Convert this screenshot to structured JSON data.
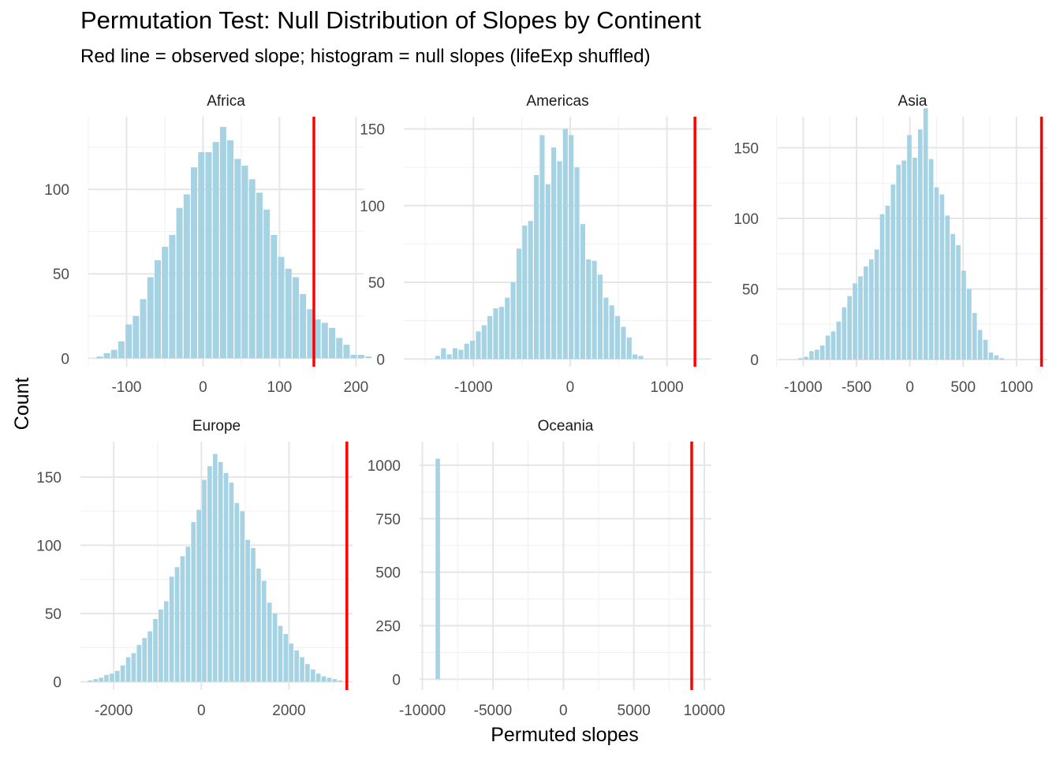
{
  "title": "Permutation Test: Null Distribution of Slopes by Continent",
  "subtitle": "Red line = observed slope; histogram = null slopes (lifeExp shuffled)",
  "colors": {
    "bar": "#a6d3e3",
    "observed_line": "#ff0000",
    "grid_major": "#e6e6e6",
    "grid_minor": "#f2f2f2",
    "text": "#4d4d4d"
  },
  "chart_data": {
    "type": "bar",
    "xlabel": "Permuted slopes",
    "ylabel": "Count",
    "grid": true,
    "facets": [
      {
        "name": "Africa",
        "xlim": [
          -150,
          210
        ],
        "ylim": [
          -5,
          143
        ],
        "xticks": [
          {
            "v": -100,
            "label": "-100"
          },
          {
            "v": 0,
            "label": "0"
          },
          {
            "v": 100,
            "label": "100"
          },
          {
            "v": 200,
            "label": "200"
          }
        ],
        "xminor": [
          -150,
          -50,
          50,
          150
        ],
        "yticks": [
          {
            "v": 0,
            "label": "0"
          },
          {
            "v": 50,
            "label": "50"
          },
          {
            "v": 100,
            "label": "100"
          }
        ],
        "yminor": [
          25,
          75,
          125
        ],
        "bins": {
          "start": -140,
          "width": 9.5,
          "counts": [
            1,
            3,
            5,
            10,
            20,
            25,
            35,
            48,
            58,
            66,
            73,
            89,
            97,
            113,
            122,
            122,
            128,
            137,
            129,
            118,
            114,
            106,
            98,
            88,
            73,
            60,
            53,
            48,
            38,
            29,
            23,
            21,
            18,
            12,
            8,
            2,
            2,
            1
          ]
        },
        "observed": 145
      },
      {
        "name": "Americas",
        "xlim": [
          -1720,
          1460
        ],
        "ylim": [
          -5,
          158
        ],
        "xticks": [
          {
            "v": -1000,
            "label": "-1000"
          },
          {
            "v": 0,
            "label": "0"
          },
          {
            "v": 1000,
            "label": "1000"
          }
        ],
        "xminor": [
          -1500,
          -500,
          500
        ],
        "yticks": [
          {
            "v": 0,
            "label": "0"
          },
          {
            "v": 50,
            "label": "50"
          },
          {
            "v": 100,
            "label": "100"
          },
          {
            "v": 150,
            "label": "150"
          }
        ],
        "yminor": [
          25,
          75,
          125
        ],
        "bins": {
          "start": -1400,
          "width": 60,
          "counts": [
            2,
            7,
            3,
            7,
            6,
            10,
            12,
            18,
            22,
            28,
            33,
            34,
            40,
            50,
            72,
            87,
            90,
            120,
            146,
            114,
            138,
            129,
            150,
            146,
            125,
            88,
            65,
            64,
            55,
            40,
            35,
            28,
            21,
            14,
            3,
            2
          ]
        },
        "observed": 1290
      },
      {
        "name": "Asia",
        "xlim": [
          -1240,
          1290
        ],
        "ylim": [
          -5,
          172
        ],
        "xticks": [
          {
            "v": -1000,
            "label": "-1000"
          },
          {
            "v": -500,
            "label": "-500"
          },
          {
            "v": 0,
            "label": "0"
          },
          {
            "v": 500,
            "label": "500"
          },
          {
            "v": 1000,
            "label": "1000"
          }
        ],
        "xminor": [
          -1250,
          -750,
          -250,
          250,
          750,
          1250
        ],
        "yticks": [
          {
            "v": 0,
            "label": "0"
          },
          {
            "v": 50,
            "label": "50"
          },
          {
            "v": 100,
            "label": "100"
          },
          {
            "v": 150,
            "label": "150"
          }
        ],
        "yminor": [
          25,
          75,
          125
        ],
        "bins": {
          "start": -1050,
          "width": 51,
          "counts": [
            1,
            2,
            6,
            7,
            10,
            17,
            20,
            27,
            37,
            45,
            54,
            59,
            66,
            71,
            78,
            103,
            109,
            124,
            138,
            141,
            159,
            143,
            163,
            178,
            142,
            122,
            117,
            102,
            89,
            81,
            63,
            50,
            33,
            21,
            14,
            5,
            3,
            1
          ]
        },
        "observed": 1235
      },
      {
        "name": "Europe",
        "xlim": [
          -2760,
          3450
        ],
        "ylim": [
          -6,
          176
        ],
        "xticks": [
          {
            "v": -2000,
            "label": "-2000"
          },
          {
            "v": 0,
            "label": "0"
          },
          {
            "v": 2000,
            "label": "2000"
          }
        ],
        "xminor": [
          -1000,
          1000,
          3000
        ],
        "yticks": [
          {
            "v": 0,
            "label": "0"
          },
          {
            "v": 50,
            "label": "50"
          },
          {
            "v": 100,
            "label": "100"
          },
          {
            "v": 150,
            "label": "150"
          }
        ],
        "yminor": [
          25,
          75,
          125
        ],
        "bins": {
          "start": -2600,
          "width": 124,
          "counts": [
            1,
            2,
            3,
            5,
            6,
            8,
            12,
            18,
            21,
            27,
            32,
            37,
            46,
            53,
            59,
            77,
            84,
            92,
            99,
            117,
            126,
            148,
            158,
            167,
            161,
            153,
            146,
            131,
            125,
            104,
            98,
            83,
            74,
            58,
            50,
            41,
            35,
            28,
            23,
            18,
            13,
            9,
            6,
            4,
            3,
            2,
            1
          ]
        },
        "observed": 3320
      },
      {
        "name": "Oceania",
        "xlim": [
          -10200,
          10500
        ],
        "ylim": [
          -50,
          1110
        ],
        "xticks": [
          {
            "v": -10000,
            "label": "-10000"
          },
          {
            "v": -5000,
            "label": "-5000"
          },
          {
            "v": 0,
            "label": "0"
          },
          {
            "v": 5000,
            "label": "5000"
          },
          {
            "v": 10000,
            "label": "10000"
          }
        ],
        "xminor": [
          -7500,
          -2500,
          2500,
          7500
        ],
        "yticks": [
          {
            "v": 0,
            "label": "0"
          },
          {
            "v": 250,
            "label": "250"
          },
          {
            "v": 500,
            "label": "500"
          },
          {
            "v": 750,
            "label": "750"
          },
          {
            "v": 1000,
            "label": "1000"
          }
        ],
        "yminor": [
          125,
          375,
          625,
          875
        ],
        "bins": {
          "start": -9100,
          "width": 380,
          "counts": [
            1030
          ]
        },
        "observed": 9100
      }
    ]
  }
}
